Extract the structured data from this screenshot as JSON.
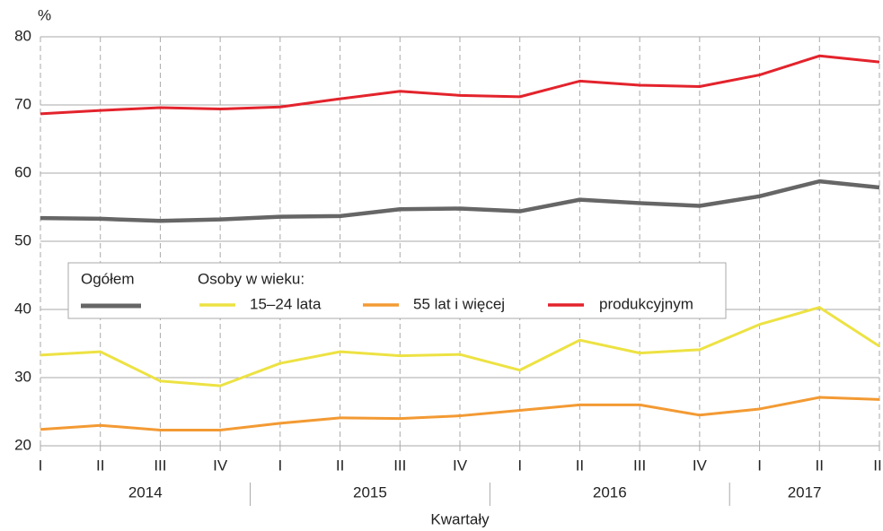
{
  "chart_data": {
    "type": "line",
    "y_label": "%",
    "x_label": "Kwartały",
    "categories": [
      "I",
      "II",
      "III",
      "IV",
      "I",
      "II",
      "III",
      "IV",
      "I",
      "II",
      "III",
      "IV",
      "I",
      "II",
      "II"
    ],
    "groups": [
      "2014",
      "2015",
      "2016",
      "2017"
    ],
    "ylim": [
      20,
      80
    ],
    "yticks": [
      20,
      30,
      40,
      50,
      60,
      70,
      80
    ],
    "grid": true,
    "legend_heading": "Osoby w wieku:",
    "series": [
      {
        "name": "Ogółem",
        "color": "#666666",
        "values": [
          53.4,
          53.3,
          53.0,
          53.2,
          53.6,
          53.7,
          54.7,
          54.8,
          54.4,
          56.1,
          55.6,
          55.2,
          56.6,
          58.8,
          57.9
        ]
      },
      {
        "name": "15–24 lata",
        "color": "#ede243",
        "values": [
          33.3,
          33.8,
          29.5,
          28.8,
          32.1,
          33.8,
          33.2,
          33.4,
          31.1,
          35.5,
          33.6,
          34.1,
          37.8,
          40.3,
          34.6
        ]
      },
      {
        "name": "55 lat i więcej",
        "color": "#f39a33",
        "values": [
          22.4,
          23.0,
          22.3,
          22.3,
          23.3,
          24.1,
          24.0,
          24.4,
          25.2,
          26.0,
          26.0,
          24.5,
          25.4,
          27.1,
          26.8
        ]
      },
      {
        "name": "produkcyjnym",
        "color": "#e3232c",
        "values": [
          68.7,
          69.2,
          69.6,
          69.4,
          69.7,
          70.9,
          72.0,
          71.4,
          71.2,
          73.5,
          72.9,
          72.7,
          74.4,
          77.2,
          76.3
        ]
      }
    ]
  }
}
